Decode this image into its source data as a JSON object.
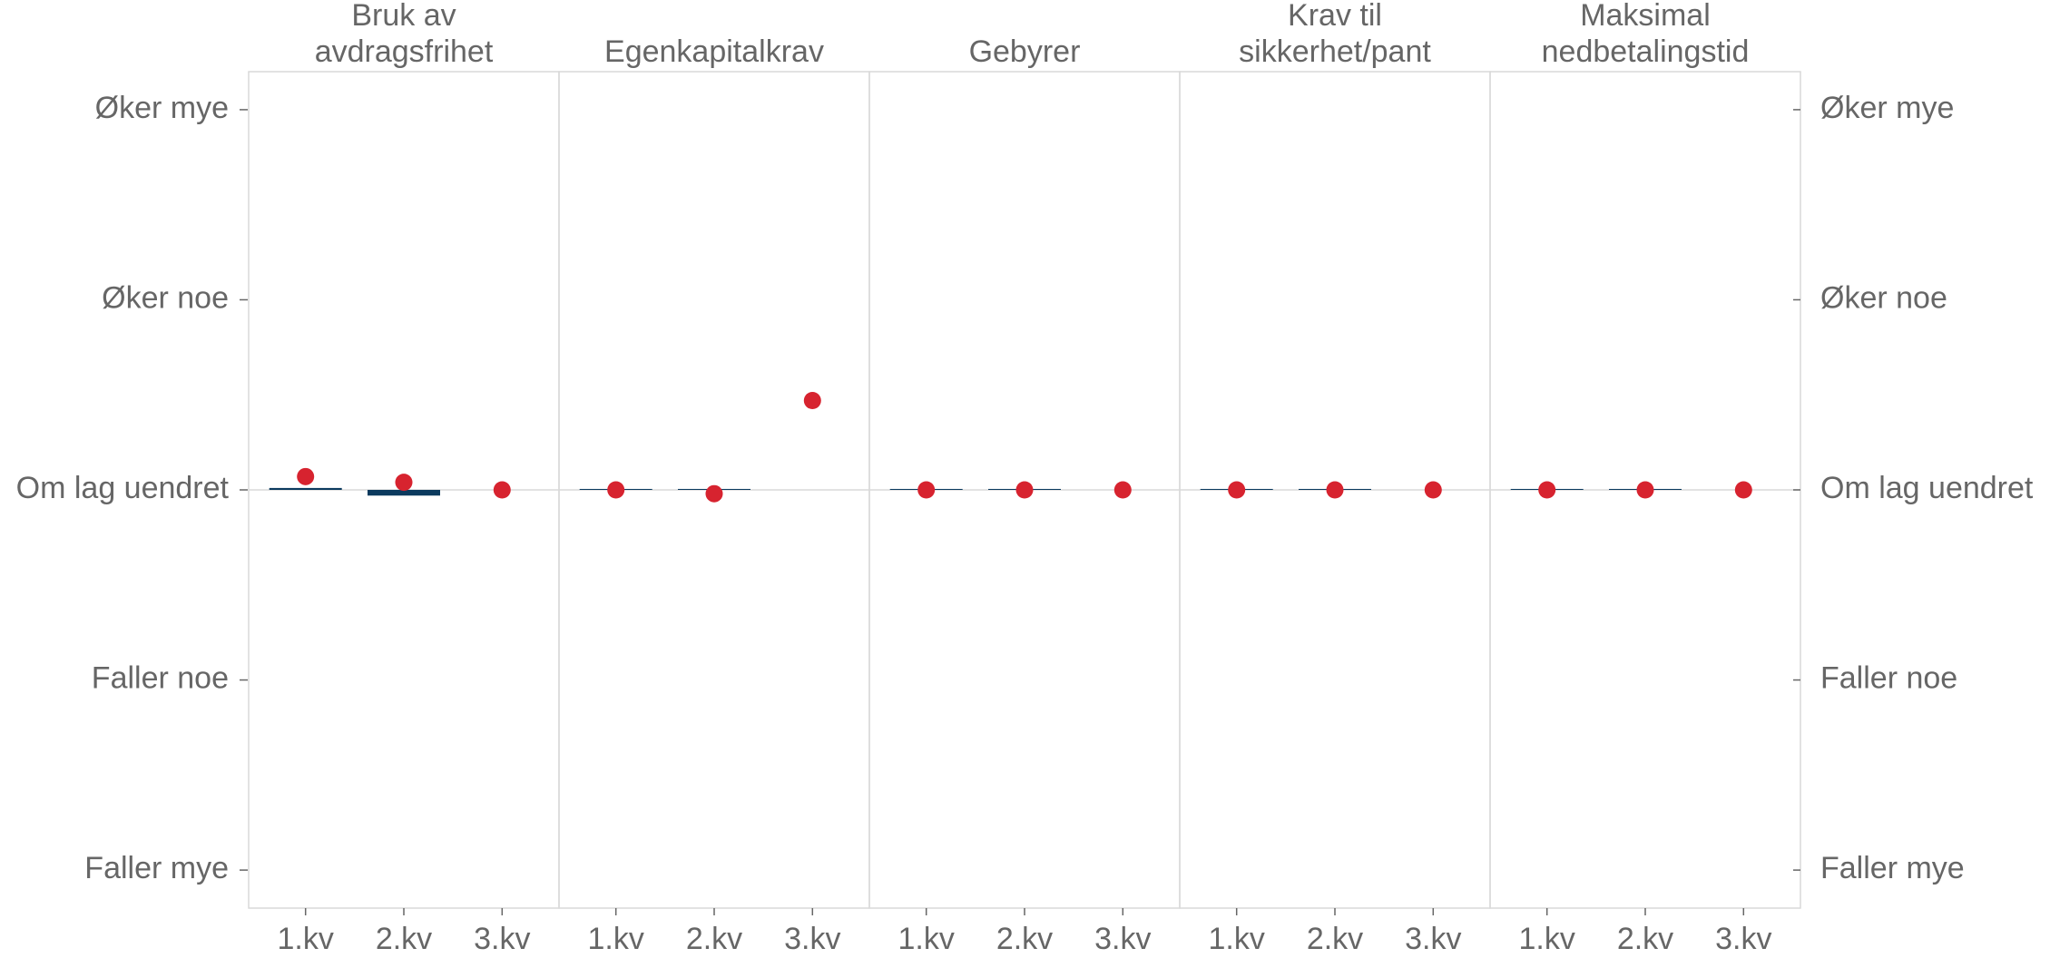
{
  "chart_data": [
    {
      "type": "bar",
      "title": "Bruk av\navdragsfrihet",
      "categories": [
        "1.kv",
        "2.kv",
        "3.kv"
      ],
      "series": [
        {
          "type": "bar",
          "color": "#0b3a5e",
          "values": [
            0.01,
            -0.03,
            null
          ]
        },
        {
          "type": "scatter",
          "color": "#d7232f",
          "values": [
            0.07,
            0.04,
            0
          ]
        }
      ],
      "ylim": [
        -2.2,
        2.2
      ],
      "yticks": [
        {
          "value": -2,
          "label": "Faller mye"
        },
        {
          "value": -1,
          "label": "Faller noe"
        },
        {
          "value": 0,
          "label": "Om lag uendret"
        },
        {
          "value": 1,
          "label": "Øker noe"
        },
        {
          "value": 2,
          "label": "Øker mye"
        }
      ]
    },
    {
      "type": "bar",
      "title": "Egenkapitalkrav",
      "categories": [
        "1.kv",
        "2.kv",
        "3.kv"
      ],
      "series": [
        {
          "type": "bar",
          "color": "#0b3a5e",
          "values": [
            0.005,
            0.005,
            null
          ]
        },
        {
          "type": "scatter",
          "color": "#d7232f",
          "values": [
            0,
            -0.02,
            0.47
          ]
        }
      ],
      "ylim": [
        -2.2,
        2.2
      ]
    },
    {
      "type": "bar",
      "title": "Gebyrer",
      "categories": [
        "1.kv",
        "2.kv",
        "3.kv"
      ],
      "series": [
        {
          "type": "bar",
          "color": "#0b3a5e",
          "values": [
            0.005,
            0.005,
            null
          ]
        },
        {
          "type": "scatter",
          "color": "#d7232f",
          "values": [
            0,
            0,
            0
          ]
        }
      ],
      "ylim": [
        -2.2,
        2.2
      ]
    },
    {
      "type": "bar",
      "title": "Krav til\nsikkerhet/pant",
      "categories": [
        "1.kv",
        "2.kv",
        "3.kv"
      ],
      "series": [
        {
          "type": "bar",
          "color": "#0b3a5e",
          "values": [
            0.005,
            0.005,
            null
          ]
        },
        {
          "type": "scatter",
          "color": "#d7232f",
          "values": [
            0,
            0,
            0
          ]
        }
      ],
      "ylim": [
        -2.2,
        2.2
      ]
    },
    {
      "type": "bar",
      "title": "Maksimal\nnedbetalingstid",
      "categories": [
        "1.kv",
        "2.kv",
        "3.kv"
      ],
      "series": [
        {
          "type": "bar",
          "color": "#0b3a5e",
          "values": [
            0.005,
            0.005,
            null
          ]
        },
        {
          "type": "scatter",
          "color": "#d7232f",
          "values": [
            0,
            0,
            0
          ]
        }
      ],
      "ylim": [
        -2.2,
        2.2
      ],
      "yticks": [
        {
          "value": -2,
          "label": "Faller mye"
        },
        {
          "value": -1,
          "label": "Faller noe"
        },
        {
          "value": 0,
          "label": "Om lag uendret"
        },
        {
          "value": 1,
          "label": "Øker noe"
        },
        {
          "value": 2,
          "label": "Øker mye"
        }
      ]
    }
  ]
}
